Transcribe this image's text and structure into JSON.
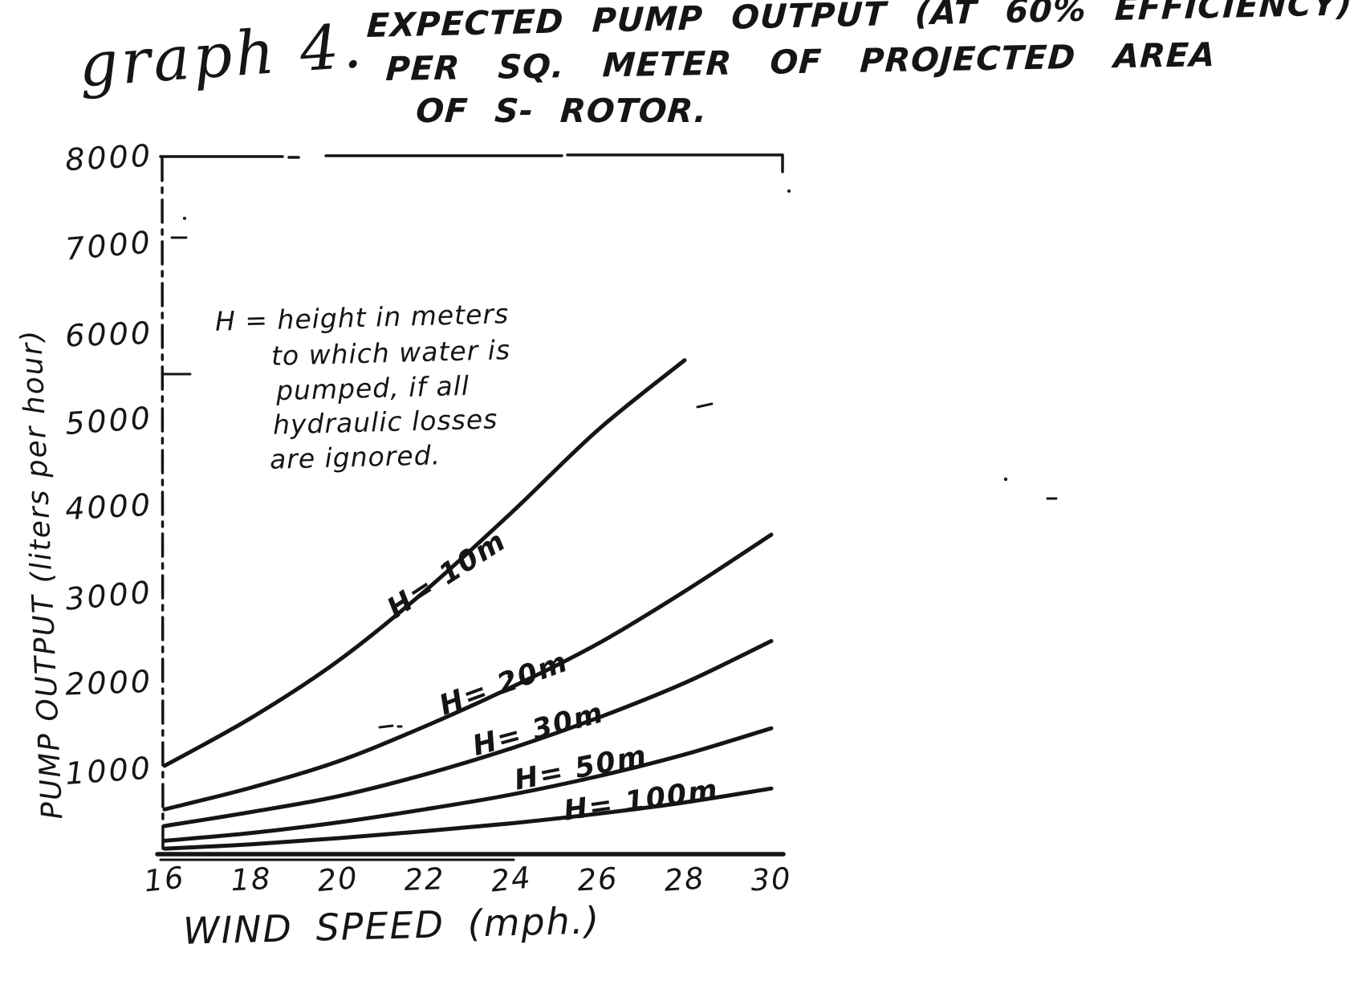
{
  "figure_label": "graph 4.",
  "title_lines": [
    "EXPECTED PUMP OUTPUT (AT 60% EFFICIENCY)",
    "PER SQ. METER OF PROJECTED AREA",
    "OF S- ROTOR."
  ],
  "annotation_lines": [
    "H = height in meters",
    "to which water is",
    "pumped, if all",
    "hydraulic losses",
    "are ignored."
  ],
  "chart_data": {
    "type": "line",
    "title": "Expected pump output (at 60% efficiency) per sq. meter of projected area of S-rotor",
    "xlabel": "WIND SPEED (mph.)",
    "ylabel": "PUMP OUTPUT (liters per hour)",
    "xlim": [
      16,
      30
    ],
    "ylim": [
      0,
      8000
    ],
    "xticks": [
      16,
      18,
      20,
      22,
      24,
      26,
      28,
      30
    ],
    "yticks": [
      1000,
      2000,
      3000,
      4000,
      5000,
      6000,
      7000,
      8000
    ],
    "grid": false,
    "legend_position": "labels-along-curves",
    "annotation": "H = height in meters to which water is pumped, if all hydraulic losses are ignored.",
    "line_color": "#151515",
    "series": [
      {
        "name": "H=10m",
        "label": "H= 10m",
        "x": [
          16,
          18,
          20,
          22,
          24,
          26,
          28
        ],
        "values": [
          1050,
          1600,
          2250,
          3050,
          3950,
          4900,
          5700
        ]
      },
      {
        "name": "H=20m",
        "label": "H= 20m",
        "x": [
          16,
          18,
          20,
          22,
          24,
          26,
          28,
          30
        ],
        "values": [
          550,
          800,
          1100,
          1500,
          1950,
          2450,
          3050,
          3700
        ]
      },
      {
        "name": "H=30m",
        "label": "H= 30m",
        "x": [
          16,
          18,
          20,
          22,
          24,
          26,
          28,
          30
        ],
        "values": [
          360,
          520,
          700,
          950,
          1250,
          1600,
          2000,
          2480
        ]
      },
      {
        "name": "H=50m",
        "label": "H= 50m",
        "x": [
          16,
          18,
          20,
          22,
          24,
          26,
          28,
          30
        ],
        "values": [
          190,
          280,
          400,
          550,
          720,
          930,
          1180,
          1480
        ]
      },
      {
        "name": "H=100m",
        "label": "H= 100m",
        "x": [
          16,
          18,
          20,
          22,
          24,
          26,
          28,
          30
        ],
        "values": [
          100,
          150,
          220,
          300,
          390,
          500,
          630,
          790
        ]
      }
    ]
  }
}
